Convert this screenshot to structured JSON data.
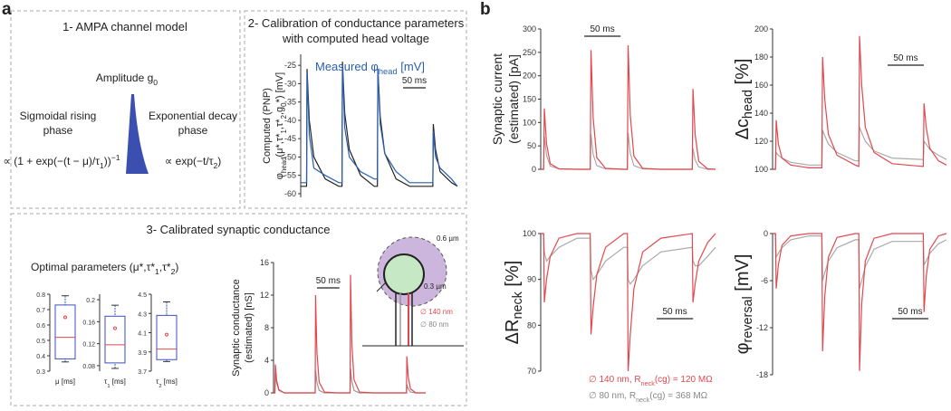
{
  "panel_a": {
    "label": "a",
    "model": {
      "title": "1- AMPA channel model",
      "amplitude": [
        "Amplitude g",
        {
          "sub": "0"
        }
      ],
      "rising": [
        "Sigmoidal rising",
        "phase"
      ],
      "decay": [
        "Exponential decay",
        "phase"
      ],
      "formula_rise": [
        "∝ (1 + exp(−(t − μ)/τ",
        {
          "sub": "1"
        },
        "))",
        {
          "sup": "−1"
        }
      ],
      "formula_decay": [
        "∝ exp(−t/τ",
        {
          "sub": "2"
        },
        ")"
      ]
    },
    "calibration": {
      "title": [
        "2- Calibration of conductance parameters",
        "with computed head voltage"
      ]
    },
    "synaptic": {
      "title": "3- Calibrated synaptic conductance",
      "optimal": [
        "Optimal parameters (μ*,τ*",
        {
          "sub": "1"
        },
        ",τ*",
        {
          "sub": "2"
        },
        ")"
      ],
      "diagram": {
        "outer": "0.6 µm",
        "inner": "0.3 µm",
        "wide": "∅ 140 nm",
        "narrow": "∅ 80 nm"
      }
    }
  },
  "panel_b": {
    "label": "b",
    "legend_wide": [
      "∅ 140 nm, R",
      {
        "sub": "neck"
      },
      "(cg) = 120 MΩ"
    ],
    "legend_narrow": [
      "∅ 80 nm, R",
      {
        "sub": "neck"
      },
      "(cg) = 368 MΩ"
    ]
  },
  "chart_data": [
    {
      "type": "line",
      "ylabel": [
        "Computed (PNP)",
        [
          "φ",
          {
            "sub": "head"
          },
          "(μ*,τ*",
          {
            "sub": "1"
          },
          ",τ*",
          {
            "sub": "2"
          },
          ",g",
          {
            "sub": "0"
          },
          "*) [mV]"
        ]
      ],
      "ylim": [
        -61,
        -22
      ],
      "yticks": [
        -25,
        -30,
        -35,
        -40,
        -45,
        -50,
        -55,
        -60
      ],
      "xlim": [
        0,
        345
      ],
      "scalebar": {
        "label": "50 ms",
        "length": 50
      },
      "x": [
        0,
        13,
        14,
        19,
        29,
        54,
        84,
        91,
        92,
        97,
        107,
        132,
        162,
        169,
        170,
        175,
        185,
        210,
        240,
        291,
        292,
        297,
        307,
        332,
        345
      ],
      "series": [
        {
          "color": "#222222",
          "values": [
            -58,
            -58,
            -26,
            -40,
            -50,
            -56,
            -58,
            -58,
            -24,
            -38,
            -48,
            -55,
            -58,
            -58,
            -26,
            -39,
            -49,
            -56,
            -58,
            -58,
            -41,
            -48,
            -54,
            -57,
            -58
          ]
        },
        {
          "name": [
            "Measured φ",
            {
              "sub": "head"
            },
            " [mV]"
          ],
          "color": "#2a5fb0",
          "values": [
            -57,
            -57,
            -27,
            -44,
            -53,
            -55,
            -57,
            -57,
            -25,
            -42,
            -50,
            -54,
            -56,
            -56,
            -26,
            -41,
            -49,
            -54,
            -57,
            -57,
            -43,
            -50,
            -53,
            -56,
            -58
          ]
        }
      ]
    },
    {
      "type": "line",
      "ylabel": [
        "Synaptic conductance",
        "(estimated) [nS]"
      ],
      "ylim": [
        0,
        16
      ],
      "yticks": [
        0,
        4,
        8,
        12,
        16
      ],
      "xlim": [
        0,
        340
      ],
      "scalebar": {
        "label": "50 ms",
        "length": 50
      },
      "x": [
        0,
        3,
        4,
        7,
        12,
        24,
        54,
        93,
        94,
        97,
        102,
        114,
        144,
        171,
        172,
        175,
        180,
        192,
        222,
        297,
        298,
        301,
        306,
        318,
        340
      ],
      "series": [
        {
          "color": "#999999",
          "values": [
            0,
            0,
            2.5,
            1.2,
            0.3,
            0,
            0,
            0,
            2.8,
            1.3,
            0.3,
            0,
            0,
            0,
            3,
            1.4,
            0.3,
            0,
            0,
            0,
            1,
            0.5,
            0.1,
            0,
            0
          ]
        },
        {
          "color": "#e0484f",
          "values": [
            0,
            0,
            3.5,
            1.5,
            0.4,
            0,
            0,
            0,
            12,
            5,
            1.3,
            0.1,
            0,
            0,
            14.5,
            6,
            1.6,
            0.1,
            0,
            0,
            4.5,
            2,
            0.5,
            0,
            0
          ]
        }
      ]
    },
    {
      "type": "box",
      "color": "#3a4fc0",
      "median_color": "#e0484f",
      "boxes": [
        {
          "label": "μ [ms]",
          "ylim": [
            0.3,
            0.8
          ],
          "yticks": [
            0.3,
            0.4,
            0.5,
            0.6,
            0.7,
            0.8
          ],
          "whisker_low": 0.36,
          "q1": 0.38,
          "median": 0.52,
          "q3": 0.73,
          "whisker_high": 0.79,
          "mean": 0.65
        },
        {
          "label": [
            "τ",
            {
              "sub": "1"
            },
            " [ms]"
          ],
          "ylim": [
            0.07,
            0.21
          ],
          "yticks": [
            0.08,
            0.12,
            0.16,
            0.2
          ],
          "whisker_low": 0.075,
          "q1": 0.085,
          "median": 0.118,
          "q3": 0.17,
          "whisker_high": 0.19,
          "mean": 0.148
        },
        {
          "label": [
            "τ",
            {
              "sub": "2"
            },
            " [ms]"
          ],
          "ylim": [
            3.7,
            4.5
          ],
          "yticks": [
            3.7,
            3.9,
            4.1,
            4.3,
            4.5
          ],
          "whisker_low": 3.8,
          "q1": 3.82,
          "median": 3.93,
          "q3": 4.28,
          "whisker_high": 4.42,
          "mean": 4.08
        }
      ]
    },
    {
      "type": "line",
      "ylabel": [
        "Synaptic current",
        "(estimated) [pA]"
      ],
      "ylim": [
        0,
        300
      ],
      "yticks": [
        0,
        50,
        100,
        150,
        200,
        250,
        300
      ],
      "xlim": [
        0,
        240
      ],
      "scalebar": {
        "label": "50 ms",
        "length": 50
      },
      "x": [
        0,
        4,
        5,
        8,
        13,
        25,
        50,
        68,
        69,
        72,
        77,
        89,
        114,
        119,
        120,
        123,
        128,
        140,
        165,
        208,
        209,
        212,
        217,
        229,
        240
      ],
      "series": [
        {
          "color": "#aaaaaa",
          "values": [
            0,
            0,
            70,
            30,
            7,
            1,
            0,
            0,
            75,
            32,
            8,
            1,
            0,
            0,
            78,
            34,
            8,
            1,
            0,
            0,
            45,
            20,
            5,
            0,
            0
          ]
        },
        {
          "color": "#e0484f",
          "values": [
            0,
            0,
            130,
            55,
            12,
            1,
            0,
            0,
            255,
            110,
            25,
            2,
            0,
            0,
            265,
            115,
            28,
            2,
            0,
            0,
            172,
            75,
            17,
            1,
            0
          ]
        }
      ]
    },
    {
      "type": "line",
      "ylabel": [
        [
          "Δc",
          {
            "sub": "head"
          },
          " [%]"
        ]
      ],
      "ylim": [
        100,
        200
      ],
      "yticks": [
        100,
        120,
        140,
        160,
        180,
        200
      ],
      "xlim": [
        0,
        240
      ],
      "scalebar": {
        "label": "50 ms",
        "length": 50
      },
      "x": [
        0,
        4,
        5,
        8,
        13,
        25,
        50,
        68,
        69,
        72,
        77,
        89,
        114,
        119,
        120,
        123,
        128,
        140,
        165,
        208,
        209,
        212,
        217,
        229,
        240
      ],
      "series": [
        {
          "color": "#aaaaaa",
          "values": [
            100,
            100,
            112,
            110,
            108,
            105,
            103,
            103,
            128,
            124,
            118,
            112,
            106,
            106,
            130,
            126,
            120,
            113,
            108,
            107,
            120,
            118,
            114,
            110,
            107
          ]
        },
        {
          "color": "#e0484f",
          "values": [
            100,
            100,
            135,
            118,
            108,
            103,
            101,
            101,
            180,
            150,
            125,
            110,
            103,
            102,
            195,
            160,
            130,
            112,
            104,
            102,
            147,
            130,
            115,
            106,
            103
          ]
        }
      ]
    },
    {
      "type": "line",
      "ylabel": [
        [
          "ΔR",
          {
            "sub": "neck"
          },
          " [%]"
        ]
      ],
      "ylim": [
        70,
        100
      ],
      "yticks": [
        70,
        80,
        90,
        100
      ],
      "xlim": [
        0,
        240
      ],
      "scalebar": {
        "label": "50 ms",
        "length": 50
      },
      "x": [
        0,
        4,
        5,
        8,
        13,
        25,
        50,
        68,
        69,
        72,
        77,
        89,
        114,
        119,
        120,
        123,
        128,
        140,
        165,
        208,
        209,
        212,
        217,
        229,
        240
      ],
      "series": [
        {
          "color": "#aaaaaa",
          "values": [
            100,
            100,
            96,
            94,
            95,
            97,
            99,
            99,
            92,
            90,
            91,
            94,
            97,
            97,
            90,
            89,
            90,
            93,
            96,
            97,
            94,
            93,
            93,
            95,
            97
          ]
        },
        {
          "color": "#e0484f",
          "values": [
            100,
            100,
            85,
            90,
            95,
            99,
            100,
            100,
            78,
            84,
            91,
            97,
            100,
            100,
            70,
            78,
            88,
            96,
            99,
            100,
            85,
            89,
            94,
            98,
            100
          ]
        }
      ]
    },
    {
      "type": "line",
      "ylabel": [
        [
          "φ",
          {
            "sub": "reversal"
          },
          " [mV]"
        ]
      ],
      "ylim": [
        -18,
        0
      ],
      "yticks": [
        0,
        -6,
        -12,
        -18
      ],
      "xlim": [
        0,
        240
      ],
      "scalebar": {
        "label": "50 ms",
        "length": 50
      },
      "x": [
        0,
        4,
        5,
        8,
        13,
        25,
        50,
        68,
        69,
        72,
        77,
        89,
        114,
        119,
        120,
        123,
        128,
        140,
        165,
        208,
        209,
        212,
        217,
        229,
        240
      ],
      "series": [
        {
          "color": "#aaaaaa",
          "values": [
            0,
            0,
            -3,
            -2.5,
            -1.8,
            -0.8,
            -0.3,
            -0.3,
            -6,
            -5,
            -3.5,
            -1.8,
            -0.8,
            -0.8,
            -7,
            -6,
            -4.2,
            -2,
            -1,
            -1,
            -4,
            -3.5,
            -2.5,
            -1.3,
            -0.8
          ]
        },
        {
          "color": "#e0484f",
          "values": [
            0,
            0,
            -7,
            -4,
            -1.5,
            -0.3,
            0,
            0,
            -15,
            -8,
            -3,
            -0.5,
            0,
            0,
            -17.5,
            -9,
            -3.5,
            -0.6,
            0,
            0,
            -10,
            -5.5,
            -2,
            -0.3,
            0
          ]
        }
      ]
    }
  ]
}
